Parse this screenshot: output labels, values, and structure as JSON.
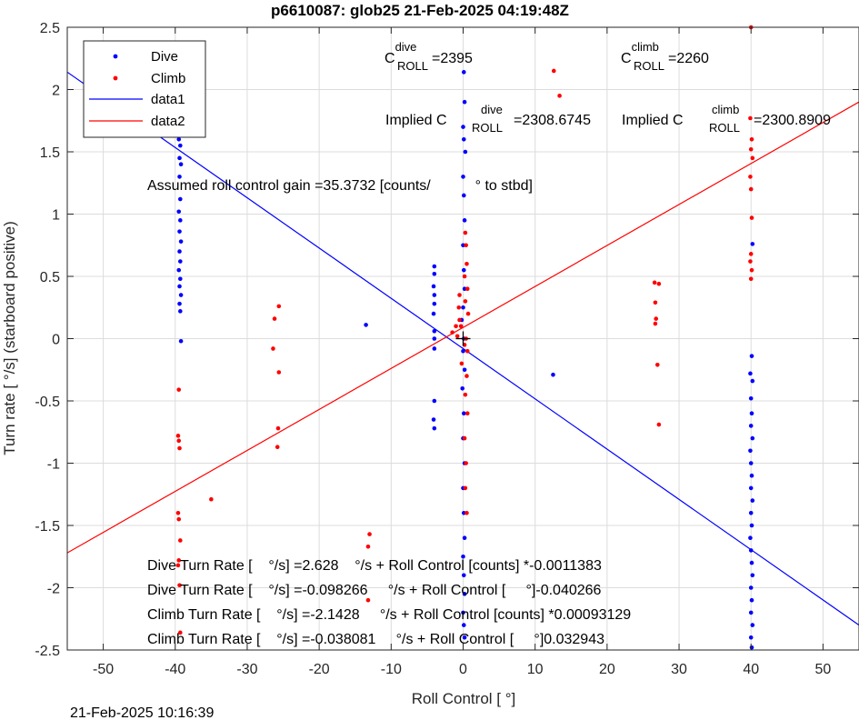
{
  "chart_data": {
    "type": "scatter",
    "title": "p6610087: glob25 21-Feb-2025 04:19:48Z",
    "xlabel": "Roll Control [   °]",
    "ylabel": "Turn rate [   °/s] (starboard positive)",
    "xlim": [
      -55,
      55
    ],
    "ylim": [
      -2.5,
      2.5
    ],
    "xticks": [
      "-50",
      "-40",
      "-30",
      "-20",
      "-10",
      "0",
      "10",
      "20",
      "30",
      "40",
      "50"
    ],
    "yticks": [
      "-2.5",
      "-2",
      "-1.5",
      "-1",
      "-0.5",
      "0",
      "0.5",
      "1",
      "1.5",
      "2",
      "2.5"
    ],
    "grid": true,
    "legend_position": "top-left",
    "legend": [
      {
        "label": "Dive",
        "kind": "marker",
        "color": "#0000ff"
      },
      {
        "label": "Climb",
        "kind": "marker",
        "color": "#ff0000"
      },
      {
        "label": "data1",
        "kind": "line",
        "color": "#0000ff"
      },
      {
        "label": "data2",
        "kind": "line",
        "color": "#ff0000"
      }
    ],
    "series": [
      {
        "name": "Dive",
        "color": "#0000ff",
        "points": [
          [
            -39.3,
            2.26
          ],
          [
            -39.2,
            2.2
          ],
          [
            -39.6,
            1.8
          ],
          [
            -39.4,
            1.64
          ],
          [
            -39.5,
            1.6
          ],
          [
            -39.3,
            1.55
          ],
          [
            -39.4,
            1.45
          ],
          [
            -39.2,
            1.4
          ],
          [
            -39.4,
            1.3
          ],
          [
            -39.3,
            1.12
          ],
          [
            -39.5,
            1.02
          ],
          [
            -39.3,
            0.95
          ],
          [
            -39.4,
            0.86
          ],
          [
            -39.2,
            0.78
          ],
          [
            -39.4,
            0.7
          ],
          [
            -39.3,
            0.62
          ],
          [
            -39.5,
            0.55
          ],
          [
            -39.3,
            0.48
          ],
          [
            -39.4,
            0.42
          ],
          [
            -39.2,
            0.35
          ],
          [
            -39.4,
            0.28
          ],
          [
            -39.3,
            0.22
          ],
          [
            -39.2,
            -0.02
          ],
          [
            -13.5,
            0.11
          ],
          [
            -4,
            0.58
          ],
          [
            -4,
            0.52
          ],
          [
            -4.1,
            0.42
          ],
          [
            -4,
            0.35
          ],
          [
            -4,
            0.28
          ],
          [
            -4.1,
            0.2
          ],
          [
            -4,
            0.06
          ],
          [
            -4,
            0
          ],
          [
            -4,
            -0.08
          ],
          [
            -4,
            -0.5
          ],
          [
            -4.1,
            -0.65
          ],
          [
            -4,
            -0.72
          ],
          [
            12.5,
            -0.29
          ],
          [
            0.1,
            2.14
          ],
          [
            0.2,
            1.9
          ],
          [
            0,
            1.7
          ],
          [
            0.1,
            1.6
          ],
          [
            0.3,
            1.5
          ],
          [
            0,
            1.3
          ],
          [
            0.1,
            1.15
          ],
          [
            0.2,
            0.95
          ],
          [
            0,
            0.75
          ],
          [
            0.1,
            0.55
          ],
          [
            0.2,
            0.4
          ],
          [
            0,
            0.25
          ],
          [
            -0.2,
            0.15
          ],
          [
            0.1,
            0
          ],
          [
            0,
            -0.1
          ],
          [
            0.2,
            -0.25
          ],
          [
            -0.1,
            -0.4
          ],
          [
            0.1,
            -0.6
          ],
          [
            0,
            -0.8
          ],
          [
            0.2,
            -1
          ],
          [
            0,
            -1.2
          ],
          [
            0.1,
            -1.4
          ],
          [
            0.2,
            -1.6
          ],
          [
            0,
            -1.75
          ],
          [
            0.1,
            -1.9
          ],
          [
            0.2,
            -2.05
          ],
          [
            0,
            -2.2
          ],
          [
            0.1,
            -2.3
          ],
          [
            0.2,
            -2.4
          ],
          [
            40.2,
            0.76
          ],
          [
            40.1,
            -0.14
          ],
          [
            39.9,
            -0.28
          ],
          [
            40.2,
            -0.34
          ],
          [
            40,
            -0.48
          ],
          [
            40.1,
            -0.6
          ],
          [
            40,
            -0.7
          ],
          [
            40.2,
            -0.8
          ],
          [
            39.9,
            -0.9
          ],
          [
            40,
            -1
          ],
          [
            40.1,
            -1.1
          ],
          [
            40,
            -1.2
          ],
          [
            40.2,
            -1.3
          ],
          [
            40,
            -1.4
          ],
          [
            40.1,
            -1.5
          ],
          [
            39.9,
            -1.6
          ],
          [
            40,
            -1.7
          ],
          [
            40.1,
            -1.8
          ],
          [
            40.2,
            -1.9
          ],
          [
            40,
            -2
          ],
          [
            40.1,
            -2.1
          ],
          [
            40,
            -2.2
          ],
          [
            40.2,
            -2.3
          ],
          [
            40,
            -2.4
          ],
          [
            40.1,
            -2.48
          ]
        ]
      },
      {
        "name": "Climb",
        "color": "#ff0000",
        "points": [
          [
            -39.5,
            -0.41
          ],
          [
            -39.6,
            -0.78
          ],
          [
            -39.5,
            -0.82
          ],
          [
            -39.4,
            -0.88
          ],
          [
            -39.6,
            -1.4
          ],
          [
            -39.5,
            -1.45
          ],
          [
            -39.3,
            -1.62
          ],
          [
            -39.5,
            -1.78
          ],
          [
            -39.6,
            -1.82
          ],
          [
            -39.4,
            -1.98
          ],
          [
            -39.3,
            -2.36
          ],
          [
            -35,
            -1.29
          ],
          [
            -26.2,
            0.16
          ],
          [
            -25.6,
            0.26
          ],
          [
            -26.4,
            -0.08
          ],
          [
            -25.6,
            -0.27
          ],
          [
            -25.7,
            -0.72
          ],
          [
            -25.8,
            -0.87
          ],
          [
            -13,
            -1.57
          ],
          [
            -13.2,
            -1.67
          ],
          [
            -13.2,
            -2.1
          ],
          [
            12.6,
            2.15
          ],
          [
            13.4,
            1.95
          ],
          [
            26.6,
            0.45
          ],
          [
            27.2,
            0.44
          ],
          [
            26.7,
            0.29
          ],
          [
            26.8,
            0.16
          ],
          [
            26.7,
            0.12
          ],
          [
            27,
            -0.21
          ],
          [
            27.2,
            -0.69
          ],
          [
            -1.5,
            0.05
          ],
          [
            -1,
            0.1
          ],
          [
            -0.5,
            0.15
          ],
          [
            -0.8,
            0.02
          ],
          [
            0.3,
            0.85
          ],
          [
            0.4,
            0.75
          ],
          [
            0.5,
            0.6
          ],
          [
            0.2,
            0.5
          ],
          [
            0.6,
            0.4
          ],
          [
            0.3,
            0.3
          ],
          [
            0.7,
            0.2
          ],
          [
            -0.3,
            0.1
          ],
          [
            0.4,
            0
          ],
          [
            0.6,
            -0.1
          ],
          [
            -0.2,
            -0.2
          ],
          [
            0.5,
            -0.3
          ],
          [
            0.3,
            -0.45
          ],
          [
            0.6,
            -0.6
          ],
          [
            0.2,
            -0.8
          ],
          [
            0.4,
            -1
          ],
          [
            0.3,
            -1.2
          ],
          [
            0.5,
            -1.4
          ],
          [
            0.2,
            -0.05
          ],
          [
            -0.5,
            0.35
          ],
          [
            -0.6,
            0.25
          ],
          [
            40,
            2.5
          ],
          [
            39.9,
            1.77
          ],
          [
            40.1,
            1.6
          ],
          [
            40,
            1.52
          ],
          [
            40.2,
            1.45
          ],
          [
            39.9,
            1.3
          ],
          [
            40,
            1.2
          ],
          [
            40.1,
            0.97
          ],
          [
            40,
            0.68
          ],
          [
            39.9,
            0.62
          ],
          [
            40.1,
            0.55
          ],
          [
            40,
            0.48
          ]
        ]
      }
    ],
    "fit_lines": [
      {
        "name": "data1",
        "color": "#0000ff",
        "x": [
          -55,
          55
        ],
        "y": [
          2.14,
          -2.3
        ]
      },
      {
        "name": "data2",
        "color": "#ff0000",
        "x": [
          -55,
          55
        ],
        "y": [
          -1.72,
          1.9
        ]
      }
    ],
    "annotations": {
      "c_dive": {
        "main": "C",
        "sup": "dive",
        "sub": "ROLL",
        "value": "=2395"
      },
      "c_climb": {
        "main": "C",
        "sup": "climb",
        "sub": "ROLL",
        "value": "=2260"
      },
      "implied_dive": {
        "main": "Implied C",
        "sup": "dive",
        "sub": "ROLL",
        "value": "=2308.6745"
      },
      "implied_climb": {
        "main": "Implied C",
        "sup": "climb",
        "sub": "ROLL",
        "value": "=2300.8909"
      },
      "gain_text": "Assumed roll control gain =35.3732 [counts/           ° to stbd]",
      "fit_texts": [
        "Dive Turn Rate [    °/s] =2.628    °/s + Roll Control [counts] *-0.0011383",
        "Dive Turn Rate [    °/s] =-0.098266     °/s + Roll Control [     °]-0.040266",
        "Climb Turn Rate [    °/s] =-2.1428     °/s + Roll Control [counts] *0.00093129",
        "Climb Turn Rate [    °/s] =-0.038081     °/s + Roll Control [     °]0.032943"
      ]
    }
  },
  "footer_timestamp": "21-Feb-2025 10:16:39"
}
